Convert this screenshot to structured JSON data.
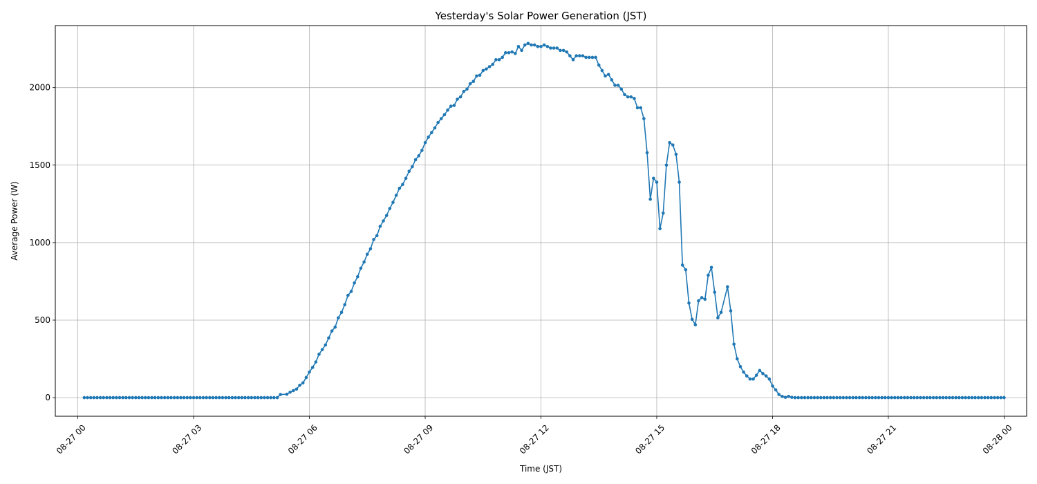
{
  "chart_data": {
    "type": "line",
    "title": "Yesterday's Solar Power Generation (JST)",
    "xlabel": "Time (JST)",
    "ylabel": "Average Power (W)",
    "grid": true,
    "legend": "none",
    "xlim": [
      "08-26 23:25",
      "08-28 00:35"
    ],
    "ylim": [
      -120,
      2400
    ],
    "x_tick_labels": [
      "08-27 00",
      "08-27 03",
      "08-27 06",
      "08-27 09",
      "08-27 12",
      "08-27 15",
      "08-27 18",
      "08-27 21",
      "08-28 00"
    ],
    "y_tick_labels": [
      "0",
      "500",
      "1000",
      "1500",
      "2000"
    ],
    "series": [
      {
        "color": "#1f77b4",
        "marker": "circle",
        "points": [
          [
            "08-27 00:10",
            0
          ],
          [
            "08-27 05:10",
            0
          ],
          [
            "08-27 05:15",
            20
          ],
          [
            "08-27 05:25",
            22
          ],
          [
            "08-27 05:30",
            35
          ],
          [
            "08-27 05:35",
            45
          ],
          [
            "08-27 05:40",
            55
          ],
          [
            "08-27 05:45",
            80
          ],
          [
            "08-27 05:50",
            95
          ],
          [
            "08-27 05:55",
            130
          ],
          [
            "08-27 06:00",
            165
          ],
          [
            "08-27 06:05",
            195
          ],
          [
            "08-27 06:10",
            230
          ],
          [
            "08-27 06:15",
            280
          ],
          [
            "08-27 06:20",
            310
          ],
          [
            "08-27 06:25",
            340
          ],
          [
            "08-27 06:30",
            385
          ],
          [
            "08-27 06:35",
            430
          ],
          [
            "08-27 06:40",
            455
          ],
          [
            "08-27 06:45",
            515
          ],
          [
            "08-27 06:50",
            550
          ],
          [
            "08-27 06:55",
            600
          ],
          [
            "08-27 07:00",
            660
          ],
          [
            "08-27 07:05",
            685
          ],
          [
            "08-27 07:10",
            740
          ],
          [
            "08-27 07:15",
            780
          ],
          [
            "08-27 07:20",
            835
          ],
          [
            "08-27 07:25",
            875
          ],
          [
            "08-27 07:30",
            925
          ],
          [
            "08-27 07:35",
            960
          ],
          [
            "08-27 07:40",
            1020
          ],
          [
            "08-27 07:45",
            1045
          ],
          [
            "08-27 07:50",
            1105
          ],
          [
            "08-27 07:55",
            1140
          ],
          [
            "08-27 08:00",
            1175
          ],
          [
            "08-27 08:05",
            1220
          ],
          [
            "08-27 08:10",
            1260
          ],
          [
            "08-27 08:15",
            1305
          ],
          [
            "08-27 08:20",
            1350
          ],
          [
            "08-27 08:25",
            1375
          ],
          [
            "08-27 08:30",
            1415
          ],
          [
            "08-27 08:35",
            1460
          ],
          [
            "08-27 08:40",
            1490
          ],
          [
            "08-27 08:45",
            1535
          ],
          [
            "08-27 08:50",
            1560
          ],
          [
            "08-27 08:55",
            1595
          ],
          [
            "08-27 09:00",
            1645
          ],
          [
            "08-27 09:05",
            1680
          ],
          [
            "08-27 09:10",
            1710
          ],
          [
            "08-27 09:15",
            1740
          ],
          [
            "08-27 09:20",
            1775
          ],
          [
            "08-27 09:25",
            1800
          ],
          [
            "08-27 09:30",
            1825
          ],
          [
            "08-27 09:35",
            1855
          ],
          [
            "08-27 09:40",
            1880
          ],
          [
            "08-27 09:45",
            1885
          ],
          [
            "08-27 09:50",
            1925
          ],
          [
            "08-27 09:55",
            1940
          ],
          [
            "08-27 10:00",
            1975
          ],
          [
            "08-27 10:05",
            1990
          ],
          [
            "08-27 10:10",
            2025
          ],
          [
            "08-27 10:15",
            2040
          ],
          [
            "08-27 10:20",
            2075
          ],
          [
            "08-27 10:25",
            2080
          ],
          [
            "08-27 10:30",
            2110
          ],
          [
            "08-27 10:35",
            2120
          ],
          [
            "08-27 10:40",
            2135
          ],
          [
            "08-27 10:45",
            2150
          ],
          [
            "08-27 10:50",
            2180
          ],
          [
            "08-27 10:55",
            2180
          ],
          [
            "08-27 11:00",
            2195
          ],
          [
            "08-27 11:05",
            2225
          ],
          [
            "08-27 11:10",
            2225
          ],
          [
            "08-27 11:15",
            2230
          ],
          [
            "08-27 11:20",
            2220
          ],
          [
            "08-27 11:25",
            2265
          ],
          [
            "08-27 11:30",
            2240
          ],
          [
            "08-27 11:35",
            2275
          ],
          [
            "08-27 11:40",
            2285
          ],
          [
            "08-27 11:45",
            2275
          ],
          [
            "08-27 11:50",
            2275
          ],
          [
            "08-27 11:55",
            2265
          ],
          [
            "08-27 12:00",
            2265
          ],
          [
            "08-27 12:05",
            2275
          ],
          [
            "08-27 12:10",
            2265
          ],
          [
            "08-27 12:15",
            2255
          ],
          [
            "08-27 12:20",
            2255
          ],
          [
            "08-27 12:25",
            2255
          ],
          [
            "08-27 12:30",
            2240
          ],
          [
            "08-27 12:35",
            2240
          ],
          [
            "08-27 12:40",
            2230
          ],
          [
            "08-27 12:45",
            2205
          ],
          [
            "08-27 12:50",
            2180
          ],
          [
            "08-27 12:55",
            2205
          ],
          [
            "08-27 13:00",
            2205
          ],
          [
            "08-27 13:05",
            2205
          ],
          [
            "08-27 13:10",
            2195
          ],
          [
            "08-27 13:15",
            2195
          ],
          [
            "08-27 13:20",
            2195
          ],
          [
            "08-27 13:25",
            2195
          ],
          [
            "08-27 13:30",
            2145
          ],
          [
            "08-27 13:35",
            2110
          ],
          [
            "08-27 13:40",
            2075
          ],
          [
            "08-27 13:45",
            2085
          ],
          [
            "08-27 13:50",
            2050
          ],
          [
            "08-27 13:55",
            2015
          ],
          [
            "08-27 14:00",
            2015
          ],
          [
            "08-27 14:05",
            1990
          ],
          [
            "08-27 14:10",
            1955
          ],
          [
            "08-27 14:15",
            1940
          ],
          [
            "08-27 14:20",
            1940
          ],
          [
            "08-27 14:25",
            1930
          ],
          [
            "08-27 14:30",
            1870
          ],
          [
            "08-27 14:35",
            1870
          ],
          [
            "08-27 14:40",
            1800
          ],
          [
            "08-27 14:45",
            1580
          ],
          [
            "08-27 14:50",
            1280
          ],
          [
            "08-27 14:55",
            1415
          ],
          [
            "08-27 15:00",
            1390
          ],
          [
            "08-27 15:05",
            1090
          ],
          [
            "08-27 15:10",
            1190
          ],
          [
            "08-27 15:15",
            1500
          ],
          [
            "08-27 15:20",
            1645
          ],
          [
            "08-27 15:25",
            1630
          ],
          [
            "08-27 15:30",
            1570
          ],
          [
            "08-27 15:35",
            1390
          ],
          [
            "08-27 15:40",
            855
          ],
          [
            "08-27 15:45",
            825
          ],
          [
            "08-27 15:50",
            610
          ],
          [
            "08-27 15:55",
            505
          ],
          [
            "08-27 16:00",
            470
          ],
          [
            "08-27 16:05",
            625
          ],
          [
            "08-27 16:10",
            645
          ],
          [
            "08-27 16:15",
            635
          ],
          [
            "08-27 16:20",
            790
          ],
          [
            "08-27 16:25",
            840
          ],
          [
            "08-27 16:30",
            680
          ],
          [
            "08-27 16:35",
            515
          ],
          [
            "08-27 16:40",
            550
          ],
          [
            "08-27 16:50",
            715
          ],
          [
            "08-27 16:55",
            560
          ],
          [
            "08-27 17:00",
            345
          ],
          [
            "08-27 17:05",
            250
          ],
          [
            "08-27 17:10",
            200
          ],
          [
            "08-27 17:15",
            165
          ],
          [
            "08-27 17:20",
            140
          ],
          [
            "08-27 17:25",
            120
          ],
          [
            "08-27 17:30",
            120
          ],
          [
            "08-27 17:35",
            145
          ],
          [
            "08-27 17:40",
            175
          ],
          [
            "08-27 17:45",
            155
          ],
          [
            "08-27 17:50",
            140
          ],
          [
            "08-27 17:55",
            120
          ],
          [
            "08-27 18:00",
            75
          ],
          [
            "08-27 18:05",
            50
          ],
          [
            "08-27 18:10",
            20
          ],
          [
            "08-27 18:15",
            8
          ],
          [
            "08-27 18:20",
            2
          ],
          [
            "08-27 18:25",
            8
          ],
          [
            "08-27 18:30",
            2
          ],
          [
            "08-27 18:35",
            0
          ],
          [
            "08-28 00:00",
            0
          ]
        ]
      }
    ]
  }
}
